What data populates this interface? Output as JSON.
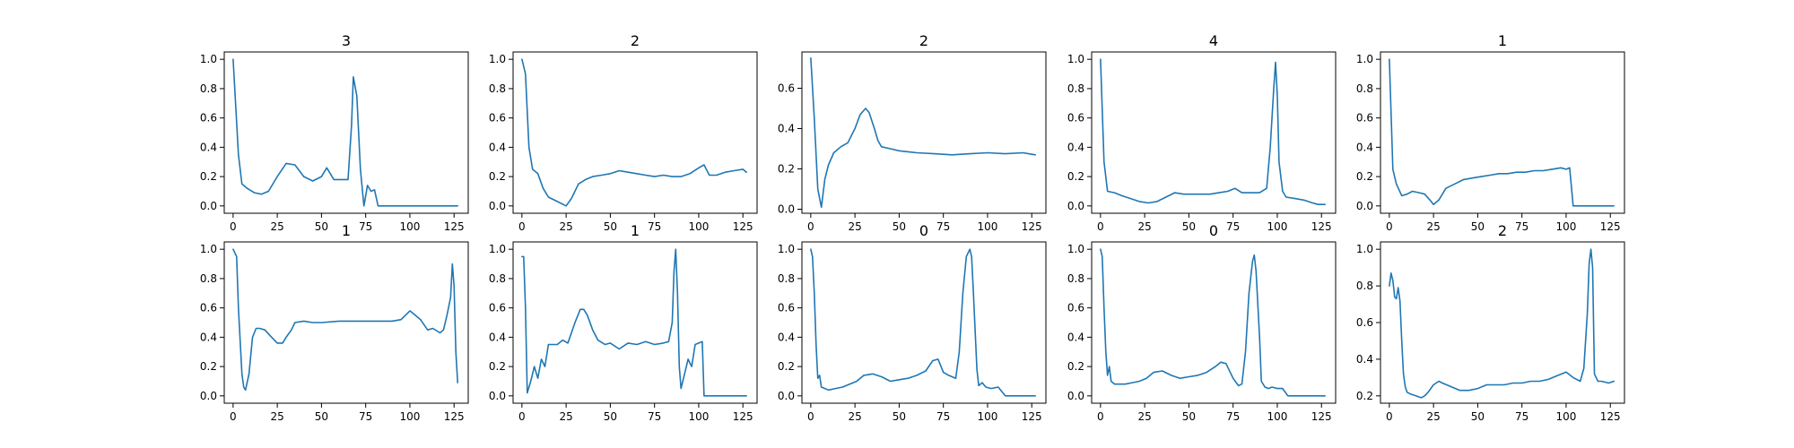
{
  "figure": {
    "line_color": "#1f77b4"
  },
  "chart_data": [
    {
      "type": "line",
      "title": "3",
      "xlim": [
        -5,
        133
      ],
      "ylim": [
        -0.05,
        1.05
      ],
      "xticks": [
        0,
        25,
        50,
        75,
        100,
        125
      ],
      "yticks": [
        0.0,
        0.2,
        0.4,
        0.6,
        0.8,
        1.0
      ],
      "x": [
        0,
        3,
        5,
        8,
        12,
        16,
        20,
        25,
        30,
        35,
        40,
        45,
        50,
        53,
        57,
        60,
        65,
        67,
        68,
        70,
        72,
        74,
        76,
        78,
        80,
        82,
        100,
        127
      ],
      "y": [
        1.0,
        0.35,
        0.15,
        0.12,
        0.09,
        0.08,
        0.1,
        0.2,
        0.29,
        0.28,
        0.2,
        0.17,
        0.2,
        0.26,
        0.18,
        0.18,
        0.18,
        0.55,
        0.88,
        0.75,
        0.25,
        0.0,
        0.14,
        0.1,
        0.11,
        0.0,
        0.0,
        0.0
      ]
    },
    {
      "type": "line",
      "title": "2",
      "xlim": [
        -5,
        133
      ],
      "ylim": [
        -0.05,
        1.05
      ],
      "xticks": [
        0,
        25,
        50,
        75,
        100,
        125
      ],
      "yticks": [
        0.0,
        0.2,
        0.4,
        0.6,
        0.8,
        1.0
      ],
      "x": [
        0,
        2,
        4,
        6,
        9,
        12,
        15,
        20,
        25,
        28,
        32,
        36,
        40,
        45,
        50,
        55,
        60,
        65,
        70,
        75,
        80,
        85,
        90,
        95,
        100,
        103,
        106,
        110,
        115,
        120,
        125,
        127
      ],
      "y": [
        1.0,
        0.9,
        0.4,
        0.25,
        0.22,
        0.12,
        0.06,
        0.03,
        0.0,
        0.05,
        0.15,
        0.18,
        0.2,
        0.21,
        0.22,
        0.24,
        0.23,
        0.22,
        0.21,
        0.2,
        0.21,
        0.2,
        0.2,
        0.22,
        0.26,
        0.28,
        0.21,
        0.21,
        0.23,
        0.24,
        0.25,
        0.23
      ]
    },
    {
      "type": "line",
      "title": "2",
      "xlim": [
        -5,
        133
      ],
      "ylim": [
        -0.02,
        0.78
      ],
      "xticks": [
        0,
        25,
        50,
        75,
        100,
        125
      ],
      "yticks": [
        0.0,
        0.2,
        0.4,
        0.6
      ],
      "x": [
        0,
        2,
        4,
        6,
        8,
        10,
        13,
        17,
        21,
        25,
        28,
        31,
        33,
        36,
        38,
        40,
        45,
        50,
        60,
        70,
        80,
        90,
        100,
        110,
        120,
        127
      ],
      "y": [
        0.75,
        0.45,
        0.1,
        0.01,
        0.15,
        0.22,
        0.28,
        0.31,
        0.33,
        0.4,
        0.47,
        0.5,
        0.48,
        0.4,
        0.34,
        0.31,
        0.3,
        0.29,
        0.28,
        0.275,
        0.27,
        0.275,
        0.28,
        0.275,
        0.28,
        0.27
      ]
    },
    {
      "type": "line",
      "title": "4",
      "xlim": [
        -5,
        133
      ],
      "ylim": [
        -0.05,
        1.05
      ],
      "xticks": [
        0,
        25,
        50,
        75,
        100,
        125
      ],
      "yticks": [
        0.0,
        0.2,
        0.4,
        0.6,
        0.8,
        1.0
      ],
      "x": [
        0,
        2,
        4,
        8,
        12,
        17,
        22,
        27,
        32,
        37,
        42,
        47,
        52,
        57,
        62,
        67,
        72,
        76,
        80,
        85,
        90,
        94,
        96,
        98,
        99,
        100,
        101,
        103,
        105,
        110,
        115,
        120,
        123,
        127
      ],
      "y": [
        1.0,
        0.3,
        0.1,
        0.09,
        0.07,
        0.05,
        0.03,
        0.02,
        0.03,
        0.06,
        0.09,
        0.08,
        0.08,
        0.08,
        0.08,
        0.09,
        0.1,
        0.12,
        0.09,
        0.09,
        0.09,
        0.12,
        0.4,
        0.8,
        0.98,
        0.75,
        0.3,
        0.1,
        0.06,
        0.05,
        0.04,
        0.02,
        0.01,
        0.01
      ]
    },
    {
      "type": "line",
      "title": "1",
      "xlim": [
        -5,
        133
      ],
      "ylim": [
        -0.05,
        1.05
      ],
      "xticks": [
        0,
        25,
        50,
        75,
        100,
        125
      ],
      "yticks": [
        0.0,
        0.2,
        0.4,
        0.6,
        0.8,
        1.0
      ],
      "x": [
        0,
        2,
        4,
        7,
        10,
        13,
        17,
        20,
        23,
        25,
        28,
        32,
        37,
        42,
        47,
        52,
        57,
        62,
        67,
        72,
        77,
        82,
        87,
        92,
        97,
        100,
        102,
        104,
        106,
        110,
        115,
        120,
        127
      ],
      "y": [
        1.0,
        0.25,
        0.15,
        0.07,
        0.08,
        0.1,
        0.09,
        0.08,
        0.04,
        0.01,
        0.04,
        0.12,
        0.15,
        0.18,
        0.19,
        0.2,
        0.21,
        0.22,
        0.22,
        0.23,
        0.23,
        0.24,
        0.24,
        0.25,
        0.26,
        0.25,
        0.26,
        0.0,
        0.0,
        0.0,
        0.0,
        0.0,
        0.0
      ]
    },
    {
      "type": "line",
      "title": "1",
      "xlim": [
        -5,
        133
      ],
      "ylim": [
        -0.05,
        1.05
      ],
      "xticks": [
        0,
        25,
        50,
        75,
        100,
        125
      ],
      "yticks": [
        0.0,
        0.2,
        0.4,
        0.6,
        0.8,
        1.0
      ],
      "x": [
        0,
        2,
        3,
        5,
        6,
        7,
        9,
        11,
        13,
        15,
        18,
        21,
        25,
        28,
        30,
        33,
        35,
        40,
        45,
        50,
        60,
        70,
        80,
        90,
        95,
        100,
        103,
        106,
        110,
        113,
        117,
        119,
        121,
        123,
        124,
        125,
        126,
        127
      ],
      "y": [
        1.0,
        0.95,
        0.6,
        0.15,
        0.06,
        0.04,
        0.15,
        0.4,
        0.46,
        0.46,
        0.45,
        0.41,
        0.36,
        0.36,
        0.4,
        0.45,
        0.5,
        0.51,
        0.5,
        0.5,
        0.51,
        0.51,
        0.51,
        0.51,
        0.52,
        0.58,
        0.55,
        0.52,
        0.45,
        0.46,
        0.43,
        0.45,
        0.55,
        0.67,
        0.9,
        0.75,
        0.3,
        0.09
      ]
    },
    {
      "type": "line",
      "title": "1",
      "xlim": [
        -5,
        133
      ],
      "ylim": [
        -0.05,
        1.05
      ],
      "xticks": [
        0,
        25,
        50,
        75,
        100,
        125
      ],
      "yticks": [
        0.0,
        0.2,
        0.4,
        0.6,
        0.8,
        1.0
      ],
      "x": [
        0,
        1,
        2,
        3,
        5,
        7,
        9,
        11,
        13,
        15,
        18,
        20,
        23,
        26,
        30,
        33,
        35,
        37,
        40,
        43,
        47,
        50,
        55,
        60,
        65,
        70,
        75,
        80,
        83,
        85,
        86,
        87,
        88,
        89,
        90,
        92,
        94,
        96,
        98,
        100,
        102,
        103,
        105,
        110,
        115,
        120,
        127
      ],
      "y": [
        0.95,
        0.95,
        0.6,
        0.02,
        0.1,
        0.2,
        0.12,
        0.25,
        0.2,
        0.35,
        0.35,
        0.35,
        0.38,
        0.36,
        0.5,
        0.59,
        0.59,
        0.55,
        0.45,
        0.38,
        0.35,
        0.36,
        0.32,
        0.36,
        0.35,
        0.37,
        0.35,
        0.36,
        0.37,
        0.5,
        0.85,
        1.0,
        0.7,
        0.2,
        0.05,
        0.15,
        0.25,
        0.2,
        0.35,
        0.36,
        0.37,
        0.0,
        0.0,
        0.0,
        0.0,
        0.0,
        0.0
      ]
    },
    {
      "type": "line",
      "title": "0",
      "xlim": [
        -5,
        133
      ],
      "ylim": [
        -0.05,
        1.05
      ],
      "xticks": [
        0,
        25,
        50,
        75,
        100,
        125
      ],
      "yticks": [
        0.0,
        0.2,
        0.4,
        0.6,
        0.8,
        1.0
      ],
      "x": [
        0,
        1,
        2,
        3,
        4,
        5,
        6,
        8,
        10,
        14,
        18,
        22,
        26,
        30,
        35,
        40,
        45,
        50,
        55,
        60,
        65,
        69,
        72,
        75,
        78,
        82,
        84,
        86,
        88,
        90,
        91,
        92,
        94,
        95,
        97,
        99,
        102,
        106,
        110,
        115,
        120,
        127
      ],
      "y": [
        1.0,
        0.95,
        0.7,
        0.35,
        0.12,
        0.14,
        0.06,
        0.05,
        0.04,
        0.05,
        0.06,
        0.08,
        0.1,
        0.14,
        0.15,
        0.13,
        0.1,
        0.11,
        0.12,
        0.14,
        0.17,
        0.24,
        0.25,
        0.16,
        0.14,
        0.12,
        0.3,
        0.7,
        0.95,
        1.0,
        0.95,
        0.7,
        0.18,
        0.07,
        0.09,
        0.06,
        0.05,
        0.06,
        0.0,
        0.0,
        0.0,
        0.0
      ]
    },
    {
      "type": "line",
      "title": "0",
      "xlim": [
        -5,
        133
      ],
      "ylim": [
        -0.05,
        1.05
      ],
      "xticks": [
        0,
        25,
        50,
        75,
        100,
        125
      ],
      "yticks": [
        0.0,
        0.2,
        0.4,
        0.6,
        0.8,
        1.0
      ],
      "x": [
        0,
        1,
        2,
        3,
        4,
        5,
        6,
        8,
        10,
        14,
        18,
        22,
        26,
        30,
        35,
        40,
        45,
        50,
        55,
        60,
        65,
        68,
        71,
        75,
        78,
        80,
        82,
        84,
        86,
        87,
        88,
        90,
        91,
        93,
        95,
        97,
        100,
        103,
        106,
        110,
        115,
        120,
        127
      ],
      "y": [
        1.0,
        0.95,
        0.6,
        0.3,
        0.14,
        0.2,
        0.1,
        0.08,
        0.08,
        0.08,
        0.09,
        0.1,
        0.12,
        0.16,
        0.17,
        0.14,
        0.12,
        0.13,
        0.14,
        0.16,
        0.2,
        0.23,
        0.22,
        0.12,
        0.07,
        0.08,
        0.3,
        0.7,
        0.92,
        0.96,
        0.85,
        0.4,
        0.1,
        0.06,
        0.05,
        0.06,
        0.05,
        0.05,
        0.0,
        0.0,
        0.0,
        0.0,
        0.0
      ]
    },
    {
      "type": "line",
      "title": "2",
      "xlim": [
        -5,
        133
      ],
      "ylim": [
        0.16,
        1.04
      ],
      "xticks": [
        0,
        25,
        50,
        75,
        100,
        125
      ],
      "yticks": [
        0.2,
        0.4,
        0.6,
        0.8,
        1.0
      ],
      "x": [
        0,
        1,
        2,
        3,
        4,
        5,
        6,
        7,
        8,
        9,
        10,
        12,
        15,
        18,
        20,
        22,
        25,
        28,
        30,
        35,
        40,
        45,
        50,
        55,
        60,
        65,
        70,
        75,
        80,
        85,
        90,
        95,
        100,
        104,
        108,
        110,
        112,
        113,
        114,
        115,
        116,
        118,
        120,
        124,
        127
      ],
      "y": [
        0.8,
        0.87,
        0.83,
        0.74,
        0.73,
        0.79,
        0.72,
        0.5,
        0.32,
        0.25,
        0.22,
        0.21,
        0.2,
        0.19,
        0.2,
        0.22,
        0.26,
        0.28,
        0.27,
        0.25,
        0.23,
        0.23,
        0.24,
        0.26,
        0.26,
        0.26,
        0.27,
        0.27,
        0.28,
        0.28,
        0.29,
        0.31,
        0.33,
        0.3,
        0.28,
        0.35,
        0.65,
        0.92,
        1.0,
        0.9,
        0.32,
        0.28,
        0.28,
        0.27,
        0.28
      ]
    }
  ]
}
